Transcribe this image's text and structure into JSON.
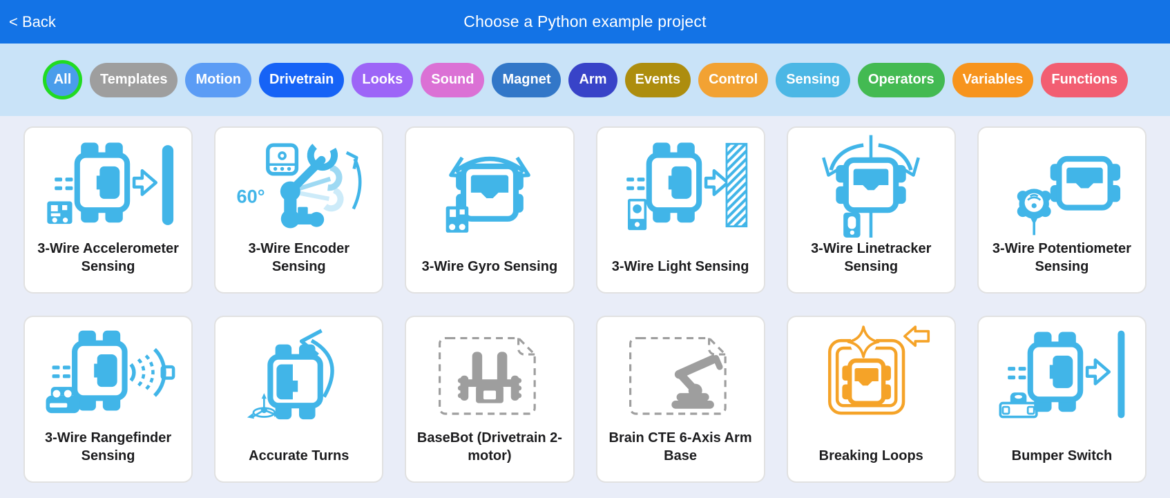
{
  "header": {
    "back_label": "< Back",
    "title": "Choose a Python example project"
  },
  "filters": [
    {
      "label": "All",
      "color": "#4A9DEB",
      "ring_color": "#21DB21",
      "shape": "circle",
      "selected": true
    },
    {
      "label": "Templates",
      "color": "#9E9E9E"
    },
    {
      "label": "Motion",
      "color": "#5B9CF5"
    },
    {
      "label": "Drivetrain",
      "color": "#1663F6"
    },
    {
      "label": "Looks",
      "color": "#9D65F7"
    },
    {
      "label": "Sound",
      "color": "#DB71D5"
    },
    {
      "label": "Magnet",
      "color": "#3277C8"
    },
    {
      "label": "Arm",
      "color": "#3843C8"
    },
    {
      "label": "Events",
      "color": "#AD8D0E"
    },
    {
      "label": "Control",
      "color": "#F2A233"
    },
    {
      "label": "Sensing",
      "color": "#4CB7E5"
    },
    {
      "label": "Operators",
      "color": "#43BA52"
    },
    {
      "label": "Variables",
      "color": "#F7941D"
    },
    {
      "label": "Functions",
      "color": "#F25E72"
    }
  ],
  "projects": [
    {
      "label": "3-Wire Accelerometer Sensing",
      "icon": "accelerometer"
    },
    {
      "label": "3-Wire Encoder Sensing",
      "icon": "encoder",
      "icon_text": "60°"
    },
    {
      "label": "3-Wire Gyro Sensing",
      "icon": "gyro"
    },
    {
      "label": "3-Wire Light Sensing",
      "icon": "light"
    },
    {
      "label": "3-Wire Linetracker Sensing",
      "icon": "linetracker"
    },
    {
      "label": "3-Wire Potentiometer Sensing",
      "icon": "potentiometer"
    },
    {
      "label": "3-Wire Rangefinder Sensing",
      "icon": "rangefinder"
    },
    {
      "label": "Accurate Turns",
      "icon": "accurate-turns"
    },
    {
      "label": "BaseBot (Drivetrain 2-motor)",
      "icon": "basebot-template"
    },
    {
      "label": "Brain CTE 6-Axis Arm Base",
      "icon": "arm-template"
    },
    {
      "label": "Breaking Loops",
      "icon": "breaking-loops"
    },
    {
      "label": "Bumper Switch",
      "icon": "bumper-switch"
    }
  ],
  "colors": {
    "header_bg": "#1373E6",
    "filter_bar_bg": "#C9E3F8",
    "page_bg": "#E9EDF8",
    "card_bg": "#FFFFFF",
    "card_border": "#E1E1E1",
    "label_color": "#1C1C1E",
    "icon_blue": "#41B5E8",
    "icon_blue_light": "#9ED9F3",
    "icon_blue_faint": "#CDEBF9",
    "template_gray": "#9E9E9E",
    "icon_orange": "#F5A328"
  }
}
